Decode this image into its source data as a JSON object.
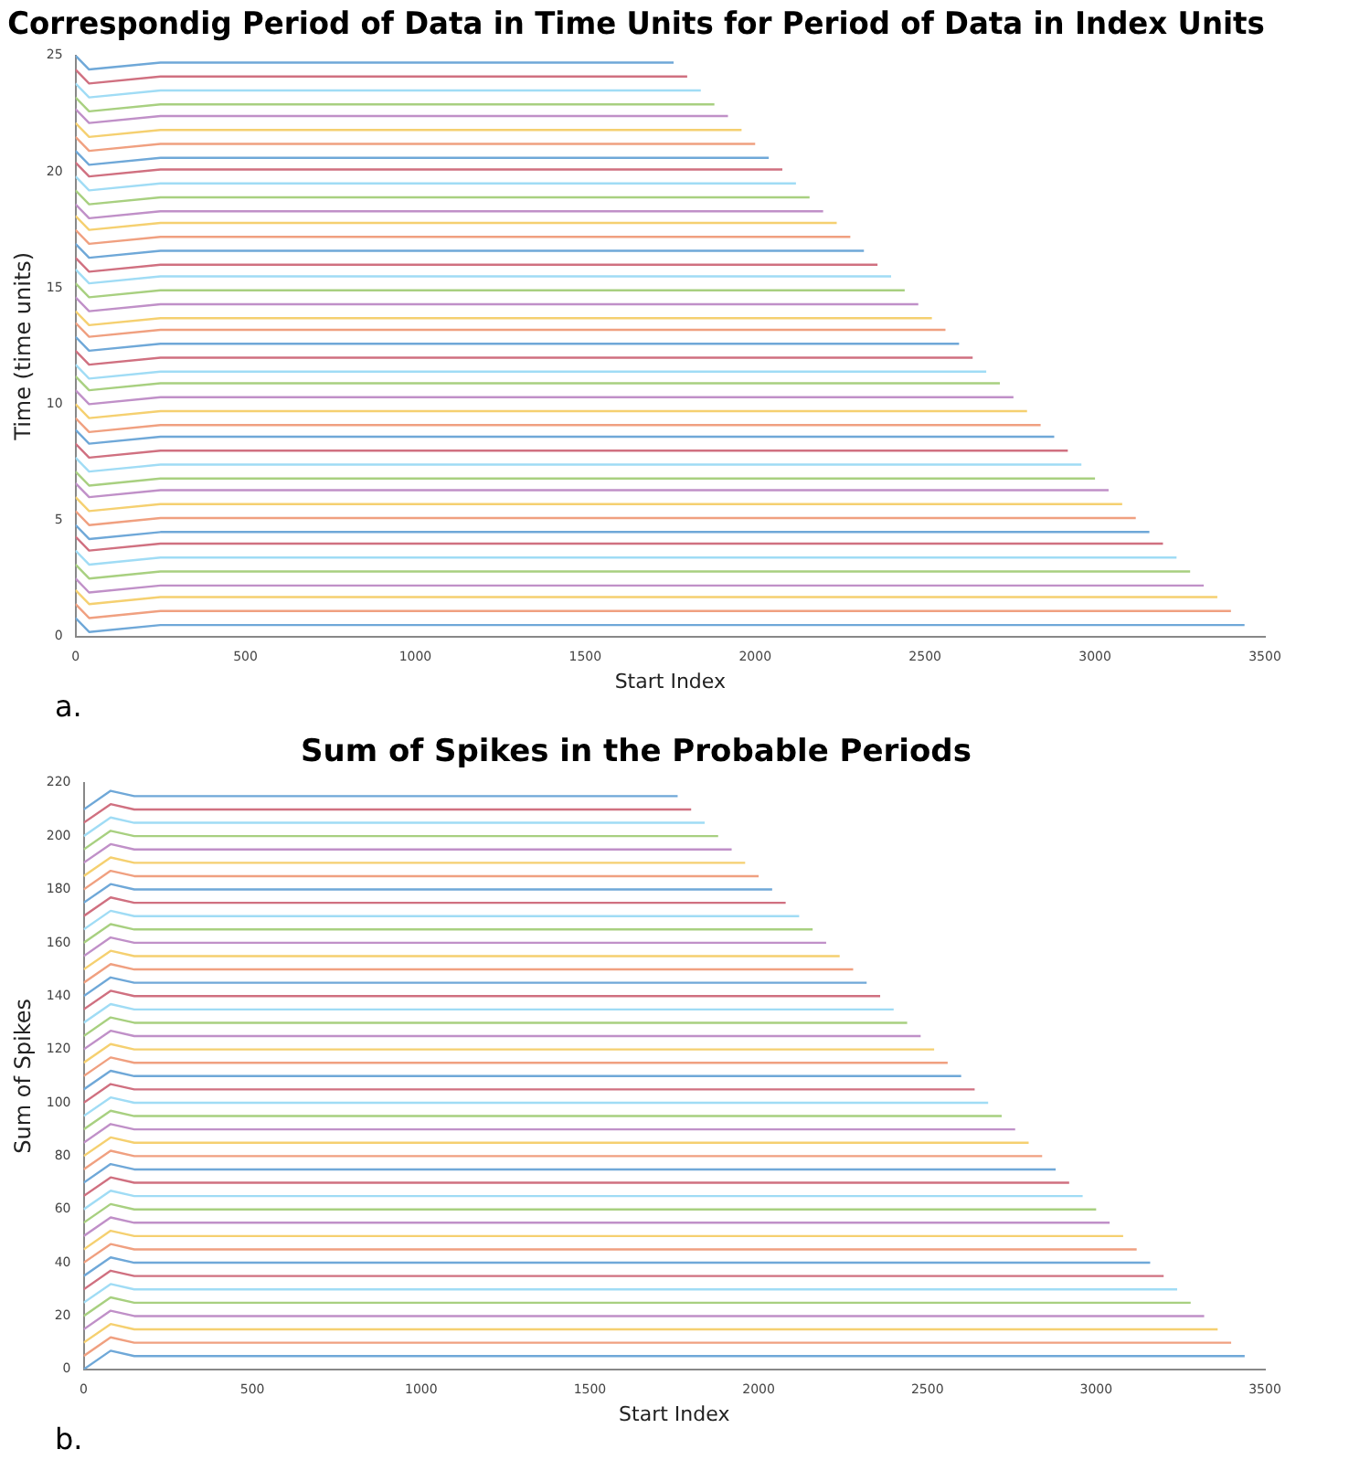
{
  "chart_data": [
    {
      "type": "line",
      "title": "Correspondig Period of Data in Time Units for Period of Data in Index Units",
      "xlabel": "Start Index",
      "ylabel": "Time (time units)",
      "xlim": [
        0,
        3500
      ],
      "xticks": [
        0,
        500,
        1000,
        1500,
        2000,
        2500,
        3000,
        3500
      ],
      "ylim": [
        0,
        25
      ],
      "yticks": [
        0,
        5,
        10,
        15,
        20,
        25
      ],
      "grid": false,
      "legend": false,
      "marker": "none",
      "line_style": "solid",
      "annotations": [
        "a."
      ],
      "series": [
        {
          "color": "#6fa8d8",
          "x": [
            0,
            40,
            250,
            3440
          ],
          "values": [
            0.8,
            0.2,
            0.5,
            0.5
          ]
        },
        {
          "color": "#f0a080",
          "x": [
            0,
            40,
            250,
            3400
          ],
          "values": [
            1.4,
            0.8,
            1.1,
            1.1
          ]
        },
        {
          "color": "#f5d070",
          "x": [
            0,
            40,
            250,
            3360
          ],
          "values": [
            2.0,
            1.4,
            1.7,
            1.7
          ]
        },
        {
          "color": "#c090c8",
          "x": [
            0,
            40,
            250,
            3320
          ],
          "values": [
            2.5,
            1.9,
            2.2,
            2.2
          ]
        },
        {
          "color": "#a8d080",
          "x": [
            0,
            40,
            250,
            3280
          ],
          "values": [
            3.1,
            2.5,
            2.8,
            2.8
          ]
        },
        {
          "color": "#a0dcf5",
          "x": [
            0,
            40,
            250,
            3240
          ],
          "values": [
            3.7,
            3.1,
            3.4,
            3.4
          ]
        },
        {
          "color": "#d07080",
          "x": [
            0,
            40,
            250,
            3200
          ],
          "values": [
            4.3,
            3.7,
            4,
            4
          ]
        },
        {
          "color": "#6fa8d8",
          "x": [
            0,
            40,
            250,
            3160
          ],
          "values": [
            4.8,
            4.2,
            4.5,
            4.5
          ]
        },
        {
          "color": "#f0a080",
          "x": [
            0,
            40,
            250,
            3120
          ],
          "values": [
            5.4,
            4.8,
            5.1,
            5.1
          ]
        },
        {
          "color": "#f5d070",
          "x": [
            0,
            40,
            250,
            3080
          ],
          "values": [
            6.0,
            5.4,
            5.7,
            5.7
          ]
        },
        {
          "color": "#c090c8",
          "x": [
            0,
            40,
            250,
            3040
          ],
          "values": [
            6.6,
            6.0,
            6.3,
            6.3
          ]
        },
        {
          "color": "#a8d080",
          "x": [
            0,
            40,
            250,
            3000
          ],
          "values": [
            7.1,
            6.5,
            6.8,
            6.8
          ]
        },
        {
          "color": "#a0dcf5",
          "x": [
            0,
            40,
            250,
            2960
          ],
          "values": [
            7.7,
            7.1,
            7.4,
            7.4
          ]
        },
        {
          "color": "#d07080",
          "x": [
            0,
            40,
            250,
            2920
          ],
          "values": [
            8.3,
            7.7,
            8,
            8
          ]
        },
        {
          "color": "#6fa8d8",
          "x": [
            0,
            40,
            250,
            2880
          ],
          "values": [
            8.9,
            8.3,
            8.6,
            8.6
          ]
        },
        {
          "color": "#f0a080",
          "x": [
            0,
            40,
            250,
            2840
          ],
          "values": [
            9.4,
            8.8,
            9.1,
            9.1
          ]
        },
        {
          "color": "#f5d070",
          "x": [
            0,
            40,
            250,
            2800
          ],
          "values": [
            10.0,
            9.4,
            9.7,
            9.7
          ]
        },
        {
          "color": "#c090c8",
          "x": [
            0,
            40,
            250,
            2760
          ],
          "values": [
            10.6,
            10.0,
            10.3,
            10.3
          ]
        },
        {
          "color": "#a8d080",
          "x": [
            0,
            40,
            250,
            2720
          ],
          "values": [
            11.2,
            10.6,
            10.9,
            10.9
          ]
        },
        {
          "color": "#a0dcf5",
          "x": [
            0,
            40,
            250,
            2680
          ],
          "values": [
            11.7,
            11.1,
            11.4,
            11.4
          ]
        },
        {
          "color": "#d07080",
          "x": [
            0,
            40,
            250,
            2640
          ],
          "values": [
            12.3,
            11.7,
            12,
            12
          ]
        },
        {
          "color": "#6fa8d8",
          "x": [
            0,
            40,
            250,
            2600
          ],
          "values": [
            12.9,
            12.3,
            12.6,
            12.6
          ]
        },
        {
          "color": "#f0a080",
          "x": [
            0,
            40,
            250,
            2560
          ],
          "values": [
            13.5,
            12.9,
            13.2,
            13.2
          ]
        },
        {
          "color": "#f5d070",
          "x": [
            0,
            40,
            250,
            2520
          ],
          "values": [
            14.0,
            13.4,
            13.7,
            13.7
          ]
        },
        {
          "color": "#c090c8",
          "x": [
            0,
            40,
            250,
            2480
          ],
          "values": [
            14.6,
            14.0,
            14.3,
            14.3
          ]
        },
        {
          "color": "#a8d080",
          "x": [
            0,
            40,
            250,
            2440
          ],
          "values": [
            15.2,
            14.6,
            14.9,
            14.9
          ]
        },
        {
          "color": "#a0dcf5",
          "x": [
            0,
            40,
            250,
            2400
          ],
          "values": [
            15.8,
            15.2,
            15.5,
            15.5
          ]
        },
        {
          "color": "#d07080",
          "x": [
            0,
            40,
            250,
            2360
          ],
          "values": [
            16.3,
            15.7,
            16,
            16
          ]
        },
        {
          "color": "#6fa8d8",
          "x": [
            0,
            40,
            250,
            2320
          ],
          "values": [
            16.9,
            16.3,
            16.6,
            16.6
          ]
        },
        {
          "color": "#f0a080",
          "x": [
            0,
            40,
            250,
            2280
          ],
          "values": [
            17.5,
            16.9,
            17.2,
            17.2
          ]
        },
        {
          "color": "#f5d070",
          "x": [
            0,
            40,
            250,
            2240
          ],
          "values": [
            18.1,
            17.5,
            17.8,
            17.8
          ]
        },
        {
          "color": "#c090c8",
          "x": [
            0,
            40,
            250,
            2200
          ],
          "values": [
            18.6,
            18.0,
            18.3,
            18.3
          ]
        },
        {
          "color": "#a8d080",
          "x": [
            0,
            40,
            250,
            2160
          ],
          "values": [
            19.2,
            18.6,
            18.9,
            18.9
          ]
        },
        {
          "color": "#a0dcf5",
          "x": [
            0,
            40,
            250,
            2120
          ],
          "values": [
            19.8,
            19.2,
            19.5,
            19.5
          ]
        },
        {
          "color": "#d07080",
          "x": [
            0,
            40,
            250,
            2080
          ],
          "values": [
            20.4,
            19.8,
            20.1,
            20.1
          ]
        },
        {
          "color": "#6fa8d8",
          "x": [
            0,
            40,
            250,
            2040
          ],
          "values": [
            20.9,
            20.3,
            20.6,
            20.6
          ]
        },
        {
          "color": "#f0a080",
          "x": [
            0,
            40,
            250,
            2000
          ],
          "values": [
            21.5,
            20.9,
            21.2,
            21.2
          ]
        },
        {
          "color": "#f5d070",
          "x": [
            0,
            40,
            250,
            1960
          ],
          "values": [
            22.1,
            21.5,
            21.8,
            21.8
          ]
        },
        {
          "color": "#c090c8",
          "x": [
            0,
            40,
            250,
            1920
          ],
          "values": [
            22.7,
            22.1,
            22.4,
            22.4
          ]
        },
        {
          "color": "#a8d080",
          "x": [
            0,
            40,
            250,
            1880
          ],
          "values": [
            23.2,
            22.6,
            22.9,
            22.9
          ]
        },
        {
          "color": "#a0dcf5",
          "x": [
            0,
            40,
            250,
            1840
          ],
          "values": [
            23.8,
            23.2,
            23.5,
            23.5
          ]
        },
        {
          "color": "#d07080",
          "x": [
            0,
            40,
            250,
            1800
          ],
          "values": [
            24.4,
            23.8,
            24.1,
            24.1
          ]
        },
        {
          "color": "#6fa8d8",
          "x": [
            0,
            40,
            250,
            1760
          ],
          "values": [
            25.0,
            24.4,
            24.7,
            24.7
          ]
        }
      ]
    },
    {
      "type": "line",
      "title": "Sum of Spikes in the Probable Periods",
      "xlabel": "Start Index",
      "ylabel": "Sum of Spikes",
      "xlim": [
        0,
        3500
      ],
      "xticks": [
        0,
        500,
        1000,
        1500,
        2000,
        2500,
        3000,
        3500
      ],
      "ylim": [
        0,
        220
      ],
      "yticks": [
        0,
        20,
        40,
        60,
        80,
        100,
        120,
        140,
        160,
        180,
        200,
        220
      ],
      "grid": false,
      "legend": false,
      "marker": "none",
      "line_style": "solid",
      "annotations": [
        "b."
      ],
      "series": [
        {
          "color": "#6fa8d8",
          "x": [
            0,
            80,
            150,
            3440
          ],
          "values": [
            0,
            7,
            5,
            5
          ]
        },
        {
          "color": "#f0a080",
          "x": [
            0,
            80,
            150,
            3400
          ],
          "values": [
            5,
            12,
            10,
            10
          ]
        },
        {
          "color": "#f5d070",
          "x": [
            0,
            80,
            150,
            3360
          ],
          "values": [
            10,
            17,
            15,
            15
          ]
        },
        {
          "color": "#c090c8",
          "x": [
            0,
            80,
            150,
            3320
          ],
          "values": [
            15,
            22,
            20,
            20
          ]
        },
        {
          "color": "#a8d080",
          "x": [
            0,
            80,
            150,
            3280
          ],
          "values": [
            20,
            27,
            25,
            25
          ]
        },
        {
          "color": "#a0dcf5",
          "x": [
            0,
            80,
            150,
            3240
          ],
          "values": [
            25,
            32,
            30,
            30
          ]
        },
        {
          "color": "#d07080",
          "x": [
            0,
            80,
            150,
            3200
          ],
          "values": [
            30,
            37,
            35,
            35
          ]
        },
        {
          "color": "#6fa8d8",
          "x": [
            0,
            80,
            150,
            3160
          ],
          "values": [
            35,
            42,
            40,
            40
          ]
        },
        {
          "color": "#f0a080",
          "x": [
            0,
            80,
            150,
            3120
          ],
          "values": [
            40,
            47,
            45,
            45
          ]
        },
        {
          "color": "#f5d070",
          "x": [
            0,
            80,
            150,
            3080
          ],
          "values": [
            45,
            52,
            50,
            50
          ]
        },
        {
          "color": "#c090c8",
          "x": [
            0,
            80,
            150,
            3040
          ],
          "values": [
            50,
            57,
            55,
            55
          ]
        },
        {
          "color": "#a8d080",
          "x": [
            0,
            80,
            150,
            3000
          ],
          "values": [
            55,
            62,
            60,
            60
          ]
        },
        {
          "color": "#a0dcf5",
          "x": [
            0,
            80,
            150,
            2960
          ],
          "values": [
            60,
            67,
            65,
            65
          ]
        },
        {
          "color": "#d07080",
          "x": [
            0,
            80,
            150,
            2920
          ],
          "values": [
            65,
            72,
            70,
            70
          ]
        },
        {
          "color": "#6fa8d8",
          "x": [
            0,
            80,
            150,
            2880
          ],
          "values": [
            70,
            77,
            75,
            75
          ]
        },
        {
          "color": "#f0a080",
          "x": [
            0,
            80,
            150,
            2840
          ],
          "values": [
            75,
            82,
            80,
            80
          ]
        },
        {
          "color": "#f5d070",
          "x": [
            0,
            80,
            150,
            2800
          ],
          "values": [
            80,
            87,
            85,
            85
          ]
        },
        {
          "color": "#c090c8",
          "x": [
            0,
            80,
            150,
            2760
          ],
          "values": [
            85,
            92,
            90,
            90
          ]
        },
        {
          "color": "#a8d080",
          "x": [
            0,
            80,
            150,
            2720
          ],
          "values": [
            90,
            97,
            95,
            95
          ]
        },
        {
          "color": "#a0dcf5",
          "x": [
            0,
            80,
            150,
            2680
          ],
          "values": [
            95,
            102,
            100,
            100
          ]
        },
        {
          "color": "#d07080",
          "x": [
            0,
            80,
            150,
            2640
          ],
          "values": [
            100,
            107,
            105,
            105
          ]
        },
        {
          "color": "#6fa8d8",
          "x": [
            0,
            80,
            150,
            2600
          ],
          "values": [
            105,
            112,
            110,
            110
          ]
        },
        {
          "color": "#f0a080",
          "x": [
            0,
            80,
            150,
            2560
          ],
          "values": [
            110,
            117,
            115,
            115
          ]
        },
        {
          "color": "#f5d070",
          "x": [
            0,
            80,
            150,
            2520
          ],
          "values": [
            115,
            122,
            120,
            120
          ]
        },
        {
          "color": "#c090c8",
          "x": [
            0,
            80,
            150,
            2480
          ],
          "values": [
            120,
            127,
            125,
            125
          ]
        },
        {
          "color": "#a8d080",
          "x": [
            0,
            80,
            150,
            2440
          ],
          "values": [
            125,
            132,
            130,
            130
          ]
        },
        {
          "color": "#a0dcf5",
          "x": [
            0,
            80,
            150,
            2400
          ],
          "values": [
            130,
            137,
            135,
            135
          ]
        },
        {
          "color": "#d07080",
          "x": [
            0,
            80,
            150,
            2360
          ],
          "values": [
            135,
            142,
            140,
            140
          ]
        },
        {
          "color": "#6fa8d8",
          "x": [
            0,
            80,
            150,
            2320
          ],
          "values": [
            140,
            147,
            145,
            145
          ]
        },
        {
          "color": "#f0a080",
          "x": [
            0,
            80,
            150,
            2280
          ],
          "values": [
            145,
            152,
            150,
            150
          ]
        },
        {
          "color": "#f5d070",
          "x": [
            0,
            80,
            150,
            2240
          ],
          "values": [
            150,
            157,
            155,
            155
          ]
        },
        {
          "color": "#c090c8",
          "x": [
            0,
            80,
            150,
            2200
          ],
          "values": [
            155,
            162,
            160,
            160
          ]
        },
        {
          "color": "#a8d080",
          "x": [
            0,
            80,
            150,
            2160
          ],
          "values": [
            160,
            167,
            165,
            165
          ]
        },
        {
          "color": "#a0dcf5",
          "x": [
            0,
            80,
            150,
            2120
          ],
          "values": [
            165,
            172,
            170,
            170
          ]
        },
        {
          "color": "#d07080",
          "x": [
            0,
            80,
            150,
            2080
          ],
          "values": [
            170,
            177,
            175,
            175
          ]
        },
        {
          "color": "#6fa8d8",
          "x": [
            0,
            80,
            150,
            2040
          ],
          "values": [
            175,
            182,
            180,
            180
          ]
        },
        {
          "color": "#f0a080",
          "x": [
            0,
            80,
            150,
            2000
          ],
          "values": [
            180,
            187,
            185,
            185
          ]
        },
        {
          "color": "#f5d070",
          "x": [
            0,
            80,
            150,
            1960
          ],
          "values": [
            185,
            192,
            190,
            190
          ]
        },
        {
          "color": "#c090c8",
          "x": [
            0,
            80,
            150,
            1920
          ],
          "values": [
            190,
            197,
            195,
            195
          ]
        },
        {
          "color": "#a8d080",
          "x": [
            0,
            80,
            150,
            1880
          ],
          "values": [
            195,
            202,
            200,
            200
          ]
        },
        {
          "color": "#a0dcf5",
          "x": [
            0,
            80,
            150,
            1840
          ],
          "values": [
            200,
            207,
            205,
            205
          ]
        },
        {
          "color": "#d07080",
          "x": [
            0,
            80,
            150,
            1800
          ],
          "values": [
            205,
            212,
            210,
            210
          ]
        },
        {
          "color": "#6fa8d8",
          "x": [
            0,
            80,
            150,
            1760
          ],
          "values": [
            210,
            217,
            215,
            215
          ]
        }
      ]
    }
  ]
}
